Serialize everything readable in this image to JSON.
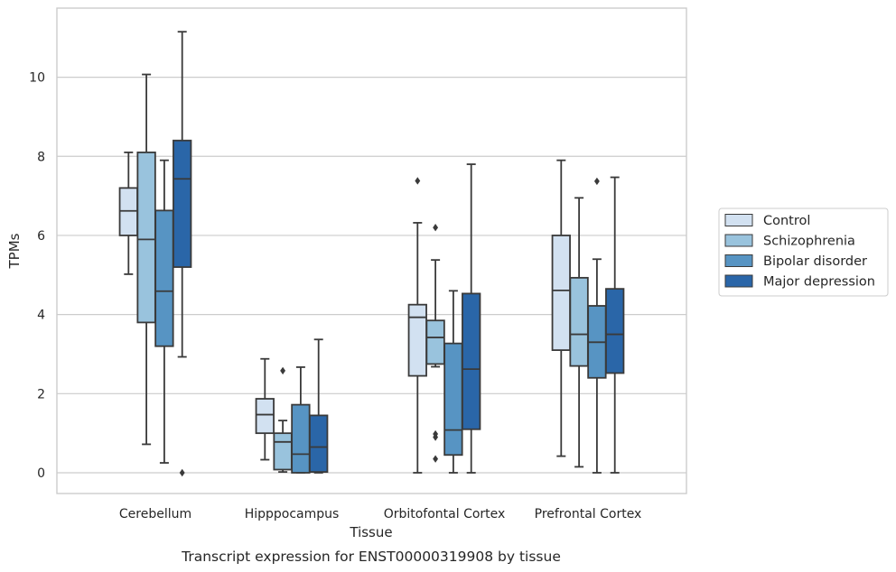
{
  "caption": "Transcript expression for ENST00000319908 by tissue",
  "chart_data": {
    "type": "box",
    "xlabel": "Tissue",
    "ylabel": "TPMs",
    "ylim": [
      -0.55,
      11.45
    ],
    "yticks": [
      0,
      2,
      4,
      6,
      8,
      10
    ],
    "grid": "horizontal",
    "legend_position": "right",
    "categories": [
      "Cerebellum",
      "Hipppocampus",
      "Orbitofontal Cortex",
      "Prefrontal Cortex"
    ],
    "series": [
      {
        "name": "Control",
        "color": "#d2e1f1",
        "boxes": [
          {
            "whislo": 5.02,
            "q1": 6.0,
            "med": 6.62,
            "q3": 7.2,
            "whishi": 8.1,
            "fliers": []
          },
          {
            "whislo": 0.33,
            "q1": 1.0,
            "med": 1.47,
            "q3": 1.87,
            "whishi": 2.88,
            "fliers": []
          },
          {
            "whislo": 0.0,
            "q1": 2.45,
            "med": 3.93,
            "q3": 4.25,
            "whishi": 6.32,
            "fliers": [
              7.38
            ]
          },
          {
            "whislo": 0.42,
            "q1": 3.1,
            "med": 4.61,
            "q3": 6.0,
            "whishi": 7.9,
            "fliers": []
          }
        ]
      },
      {
        "name": "Schizophrenia",
        "color": "#99c3dd",
        "boxes": [
          {
            "whislo": 0.72,
            "q1": 3.8,
            "med": 5.9,
            "q3": 8.1,
            "whishi": 10.07,
            "fliers": []
          },
          {
            "whislo": 0.02,
            "q1": 0.08,
            "med": 0.78,
            "q3": 1.0,
            "whishi": 1.32,
            "fliers": [
              2.58
            ]
          },
          {
            "whislo": 2.68,
            "q1": 2.75,
            "med": 3.42,
            "q3": 3.85,
            "whishi": 5.38,
            "fliers": [
              6.2,
              0.98,
              0.9,
              0.35
            ]
          },
          {
            "whislo": 0.15,
            "q1": 2.7,
            "med": 3.5,
            "q3": 4.93,
            "whishi": 6.95,
            "fliers": []
          }
        ]
      },
      {
        "name": "Bipolar disorder",
        "color": "#5794c3",
        "boxes": [
          {
            "whislo": 0.25,
            "q1": 3.2,
            "med": 4.59,
            "q3": 6.63,
            "whishi": 7.9,
            "fliers": []
          },
          {
            "whislo": 0.0,
            "q1": 0.0,
            "med": 0.47,
            "q3": 1.72,
            "whishi": 2.67,
            "fliers": []
          },
          {
            "whislo": 0.0,
            "q1": 0.45,
            "med": 1.08,
            "q3": 3.27,
            "whishi": 4.6,
            "fliers": []
          },
          {
            "whislo": 0.0,
            "q1": 2.4,
            "med": 3.3,
            "q3": 4.22,
            "whishi": 5.4,
            "fliers": [
              7.37
            ]
          }
        ]
      },
      {
        "name": "Major depression",
        "color": "#2a66a8",
        "boxes": [
          {
            "whislo": 2.93,
            "q1": 5.2,
            "med": 7.43,
            "q3": 8.4,
            "whishi": 11.15,
            "fliers": [
              0.0
            ]
          },
          {
            "whislo": 0.0,
            "q1": 0.02,
            "med": 0.65,
            "q3": 1.45,
            "whishi": 3.37,
            "fliers": []
          },
          {
            "whislo": 0.0,
            "q1": 1.1,
            "med": 2.62,
            "q3": 4.53,
            "whishi": 7.8,
            "fliers": []
          },
          {
            "whislo": 0.0,
            "q1": 2.52,
            "med": 3.5,
            "q3": 4.65,
            "whishi": 7.47,
            "fliers": []
          }
        ]
      }
    ]
  }
}
